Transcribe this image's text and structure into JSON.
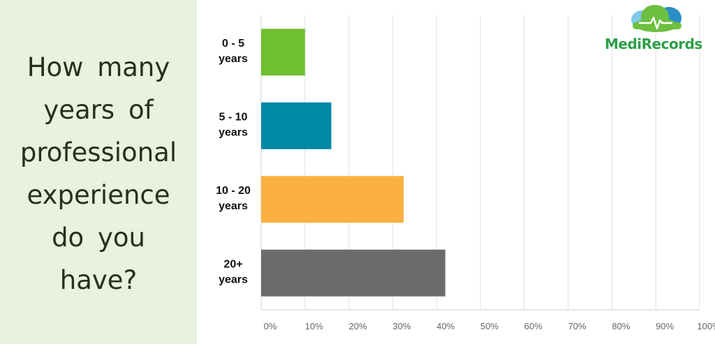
{
  "question_lines": [
    "How many",
    "years of",
    "professional",
    "experience",
    "do you",
    "have?"
  ],
  "logo": {
    "text": "MediRecords",
    "icon": "cloud-heartbeat-icon"
  },
  "colors": {
    "panel_bg": "#e8f2dc",
    "grid": "#e2e2e2",
    "axis": "#cfcfcf",
    "logo_text": "#2e9e48",
    "logo_cloud_light": "#7ec8e8",
    "logo_cloud_dark": "#2a8ec5",
    "logo_cloud_green": "#6cbf3f"
  },
  "chart_data": {
    "type": "bar",
    "orientation": "horizontal",
    "categories": [
      [
        "0 - 5",
        "years"
      ],
      [
        "5 - 10",
        "years"
      ],
      [
        "10 - 20",
        "years"
      ],
      [
        "20+",
        "years"
      ]
    ],
    "values": [
      10,
      16,
      32.5,
      42
    ],
    "bar_colors": [
      "#70bf2f",
      "#0088a6",
      "#fbb141",
      "#6b6b6b"
    ],
    "xlim": [
      0,
      100
    ],
    "ticks": [
      "0%",
      "10%",
      "20%",
      "30%",
      "40%",
      "50%",
      "60%",
      "70%",
      "80%",
      "90%",
      "100%"
    ],
    "grid": true,
    "legend": false
  }
}
